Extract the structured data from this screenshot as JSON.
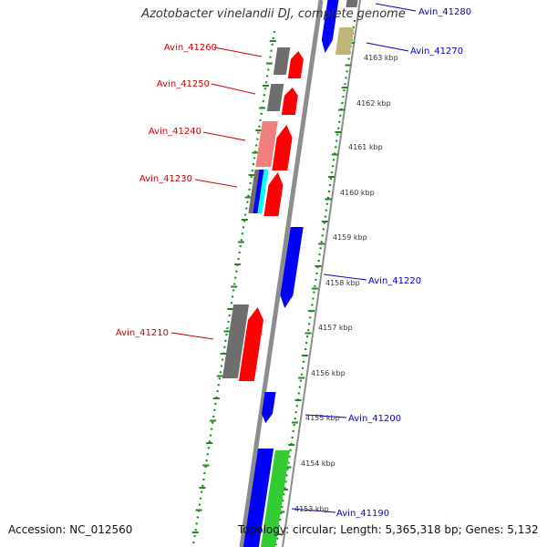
{
  "title": "Azotobacter vinelandii DJ, complete genome",
  "footer": {
    "accession": "Accession: NC_012560",
    "topology": "Topology: circular; Length: 5,365,318 bp; Genes: 5,132"
  },
  "colors": {
    "backbone": "#8c8c8c",
    "ruler_dots": "#1d8a1d",
    "strand_plus_label": "#0000cc",
    "strand_minus_label": "#cc0000",
    "gene_red": "#ff0000",
    "gene_grey": "#6e6e6e",
    "gene_blue": "#0000ff",
    "gene_green": "#33cc33",
    "gene_pink": "#f08080",
    "gene_olive": "#c2b57a",
    "gene_cyan": "#00ffff"
  },
  "scale_labels": [
    "4163 kbp",
    "4162 kbp",
    "4161 kbp",
    "4160 kbp",
    "4159 kbp",
    "4158 kbp",
    "4157 kbp",
    "4156 kbp",
    "4155 kbp",
    "4154 kbp",
    "4153 kbp"
  ],
  "gene_labels_left": [
    "Avin_41260",
    "Avin_41250",
    "Avin_41240",
    "Avin_41230",
    "Avin_41210"
  ],
  "gene_labels_right": [
    "Avin_41280",
    "Avin_41270",
    "Avin_41220",
    "Avin_41200",
    "Avin_41190"
  ]
}
